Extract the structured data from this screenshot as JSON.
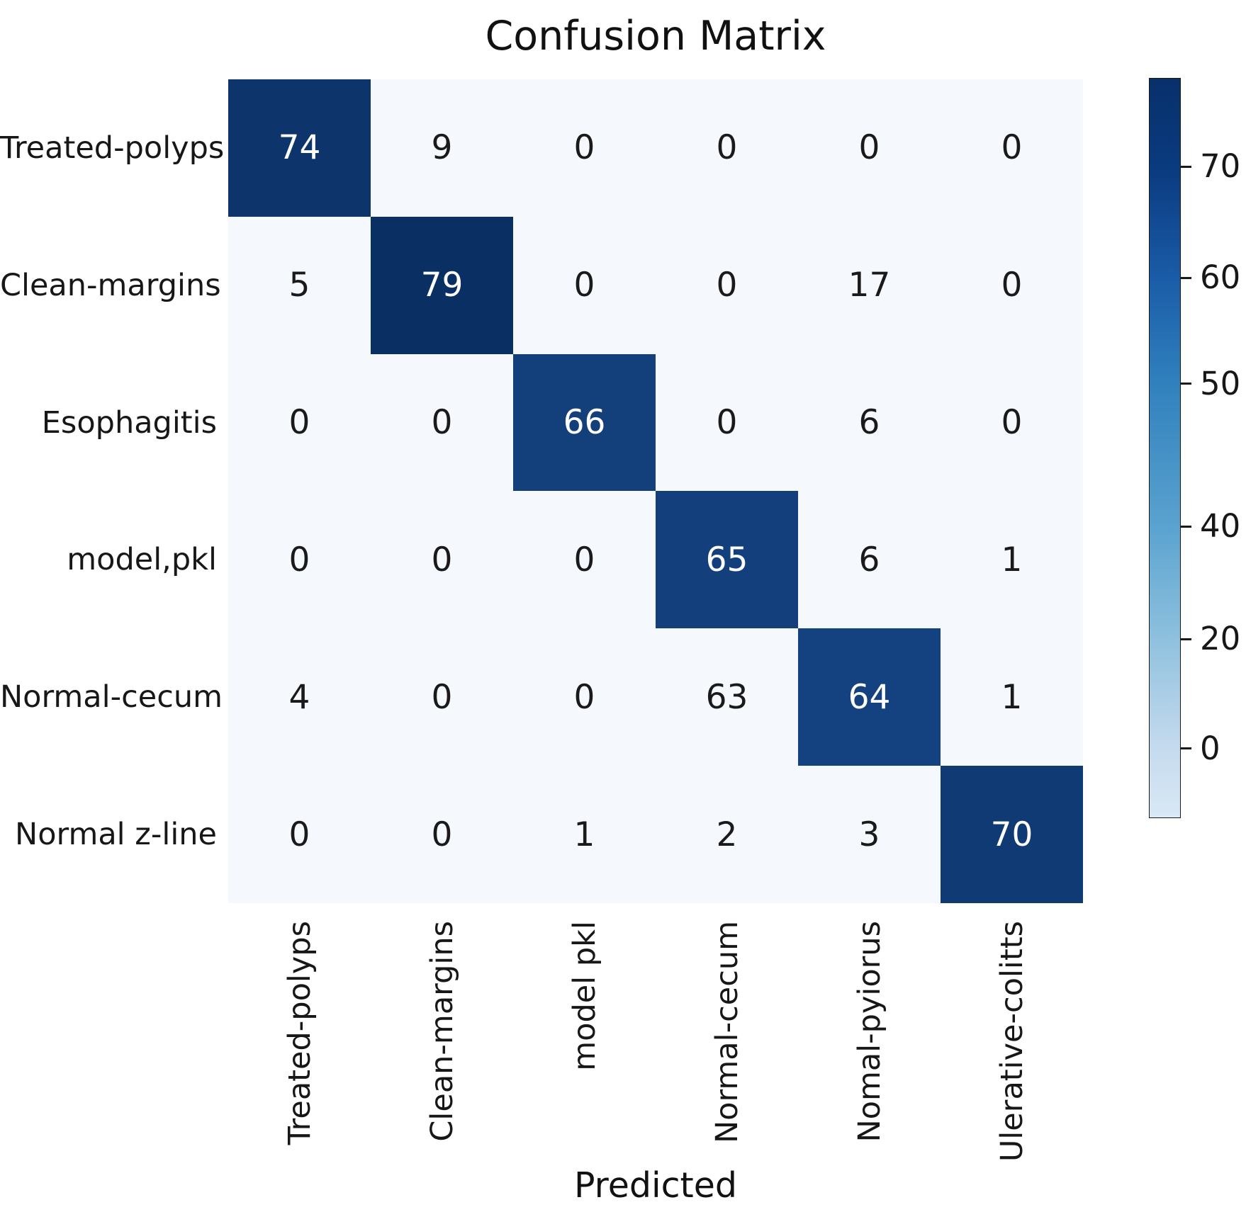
{
  "title": "Confusion Matrix",
  "xlabel": "Predicted",
  "chart_data": {
    "type": "heatmap",
    "title": "Confusion Matrix",
    "xlabel": "Predicted",
    "row_labels": [
      "Treated-polyps",
      "Clean-margins",
      "Esophagitis",
      "model,pkl",
      "Normal-cecum",
      "Normal z-line"
    ],
    "col_labels": [
      "Treated-polyps",
      "Clean-margins",
      "model pkl",
      "Normal-cecum",
      "Nomal-pyiorus",
      "Ulerative-colitts"
    ],
    "matrix": [
      [
        74,
        9,
        0,
        0,
        0,
        0
      ],
      [
        5,
        79,
        0,
        0,
        17,
        0
      ],
      [
        0,
        0,
        66,
        0,
        6,
        0
      ],
      [
        0,
        0,
        0,
        65,
        6,
        1
      ],
      [
        4,
        0,
        0,
        63,
        64,
        1
      ],
      [
        0,
        0,
        1,
        2,
        3,
        70
      ]
    ],
    "highlighted_cells": "diagonal",
    "colorbar": {
      "tick_labels": [
        "70",
        "60",
        "50",
        "40",
        "20",
        "0"
      ],
      "tick_positions": [
        0.12,
        0.27,
        0.413,
        0.606,
        0.758,
        0.906
      ],
      "top_color": "#08306b",
      "bottom_color": "#d9e8f5"
    },
    "palette": {
      "light_cell": "#f5f9fd",
      "diag_color_low": "#14417f",
      "diag_color_high": "#0a2f63",
      "diag_value_low": 64,
      "diag_value_high": 79,
      "dark_text": "#1a1a1a",
      "light_text": "#ffffff"
    },
    "legend_position": "right-colorbar",
    "grid": false
  }
}
